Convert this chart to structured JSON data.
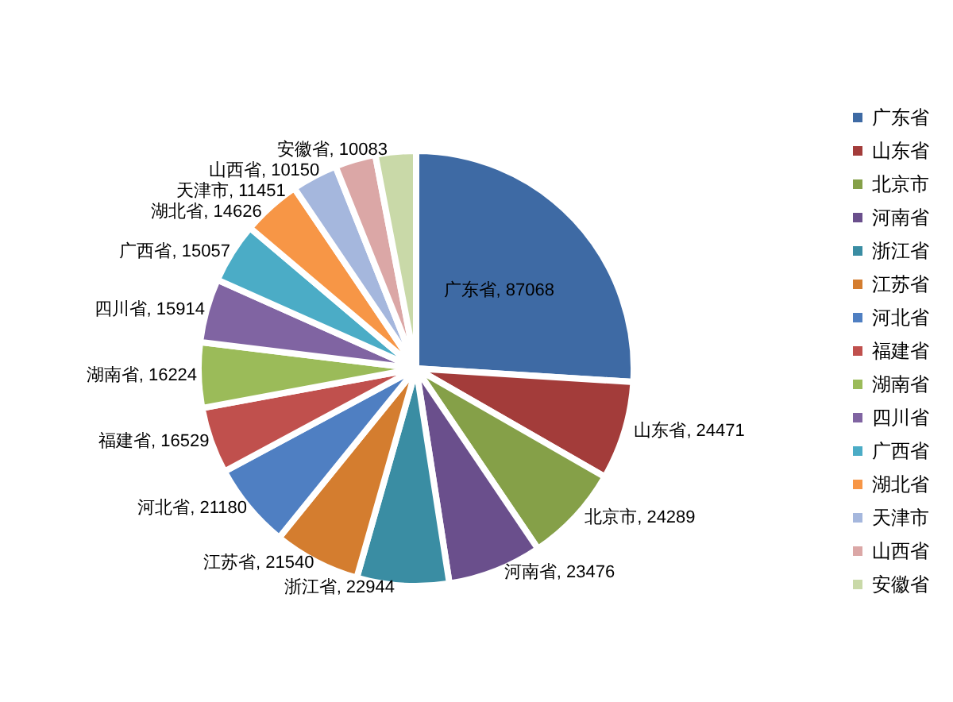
{
  "chart_data": {
    "type": "pie",
    "categories": [
      "广东省",
      "山东省",
      "北京市",
      "河南省",
      "浙江省",
      "江苏省",
      "河北省",
      "福建省",
      "湖南省",
      "四川省",
      "广西省",
      "湖北省",
      "天津市",
      "山西省",
      "安徽省"
    ],
    "values": [
      87068,
      24471,
      24289,
      23476,
      22944,
      21540,
      21180,
      16529,
      16224,
      15914,
      15057,
      14626,
      11451,
      10150,
      10083
    ],
    "colors": [
      "#3e6aa4",
      "#a33c3a",
      "#85a048",
      "#6a4f8c",
      "#3a8da3",
      "#d47d2f",
      "#4f7fc2",
      "#c0504d",
      "#9bbb59",
      "#8064a2",
      "#4bacc6",
      "#f79646",
      "#a5b7dd",
      "#dba7a6",
      "#c9d9a8"
    ],
    "value_labels": [
      ", 87068",
      ", 24471",
      ", 24289",
      ", 23476",
      ", 22944",
      ", 21540",
      ", 21180",
      ", 16529",
      ", 16224",
      ", 15914",
      ", 15057",
      ", 14626",
      ", 11451",
      ", 10150",
      ", 10083"
    ],
    "legend": "right"
  }
}
